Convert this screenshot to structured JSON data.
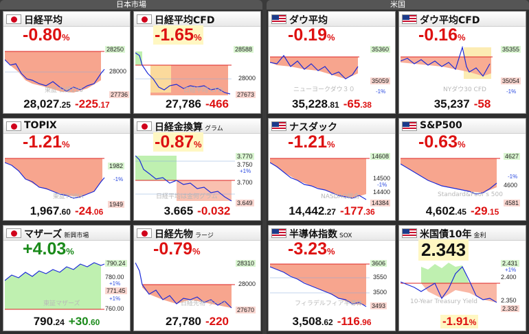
{
  "sections": {
    "japan": "日本市場",
    "us": "米国"
  },
  "colors": {
    "up": "#1a8a1a",
    "down": "#dd1111",
    "line": "#1a2ad8",
    "fill_down": "#f7a58e",
    "fill_up": "#bff0b0"
  },
  "panels": {
    "nikkei": {
      "title": "日経平均",
      "pct": "-0.80",
      "unit": "%",
      "hi": "28250",
      "mid": "28000",
      "lo": "27736",
      "wm": "東証 日経225",
      "price": "28,027",
      "price_dec": ".25",
      "chg": "-225",
      "chg_dec": ".17"
    },
    "nikkeicfd": {
      "title": "日経平均CFD",
      "pct": "-1.65",
      "unit": "%",
      "hi": "28588",
      "mid": "28000",
      "lo": "27673",
      "wm": "日経平均 CFD",
      "price": "27,786",
      "chg": "-466"
    },
    "dow": {
      "title": "ダウ平均",
      "pct": "-0.19",
      "unit": "%",
      "hi": "35360",
      "lo": "35059",
      "wm": "ニューヨークダウ３０",
      "note": "-1%",
      "price": "35,228",
      "price_dec": ".81",
      "chg": "-65",
      "chg_dec": ".38"
    },
    "dowcfd": {
      "title": "ダウ平均CFD",
      "pct": "-0.16",
      "unit": "%",
      "hi": "35355",
      "lo": "35054",
      "wm": "NYダウ30 CFD",
      "note": "-1%",
      "price": "35,237",
      "chg": "-58"
    },
    "topix": {
      "title": "TOPIX",
      "pct": "-1.21",
      "unit": "%",
      "hi": "1982",
      "note": "-1%",
      "lo": "1949",
      "wm": "東証TOPIX",
      "price": "1,967",
      "price_dec": ".60",
      "chg": "-24",
      "chg_dec": ".06"
    },
    "gold": {
      "title": "日経金換算",
      "sub": "グラム",
      "pct": "-0.87",
      "unit": "%",
      "hi": "3.770",
      "t1": "3.750",
      "n1": "+1%",
      "t2": "3.700",
      "lo": "3.649",
      "wm": "日経平均は金何グラム",
      "price": "3.665",
      "chg": "-0.032"
    },
    "nasdaq": {
      "title": "ナスダック",
      "pct": "-1.21",
      "unit": "%",
      "hi": "14608",
      "mid": "14500",
      "note": "-1%",
      "t2": "14400",
      "lo": "14384",
      "wm": "NASDAQ総合",
      "price": "14,442",
      "price_dec": ".27",
      "chg": "-177",
      "chg_dec": ".36"
    },
    "sp500": {
      "title": "S&P500",
      "pct": "-0.63",
      "unit": "%",
      "hi": "4627",
      "note": "-1%",
      "mid": "4600",
      "lo": "4581",
      "wm": "Standard&Poor's 500",
      "price": "4,602",
      "price_dec": ".45",
      "chg": "-29",
      "chg_dec": ".15"
    },
    "mothers": {
      "title": "マザーズ",
      "sub": "新興市場",
      "pct": "+4.03",
      "unit": "%",
      "hi": "790.24",
      "t1": "780.00",
      "n1": "+1%",
      "t2": "771.45",
      "n2": "+1%",
      "lo": "760.00",
      "wm": "東証マザーズ",
      "price": "790",
      "price_dec": ".24",
      "chg": "+30",
      "chg_dec": ".60"
    },
    "futures": {
      "title": "日経先物",
      "sub": "ラージ",
      "pct": "-0.79",
      "unit": "%",
      "hi": "28310",
      "mid": "28000",
      "lo": "27670",
      "wm": "日経先物 ラージ",
      "price": "27,780",
      "chg": "-220"
    },
    "sox": {
      "title": "半導体指数",
      "sub": "SOX",
      "pct": "-3.23",
      "unit": "%",
      "hi": "3606",
      "mid": "3550",
      "t2": "3500",
      "lo": "3493",
      "wm": "フィラデルフィア半導体",
      "price": "3,508",
      "price_dec": ".62",
      "chg": "-116",
      "chg_dec": ".96"
    },
    "bond": {
      "title": "米国債10年",
      "sub": "金利",
      "value": "2.343",
      "hi": "2.431",
      "n1": "+1%",
      "t1": "2.400",
      "t2": "2.350",
      "lo": "2.332",
      "wm": "10-Year Treasury Yield",
      "pct": "-1.91",
      "unit": "%"
    }
  }
}
